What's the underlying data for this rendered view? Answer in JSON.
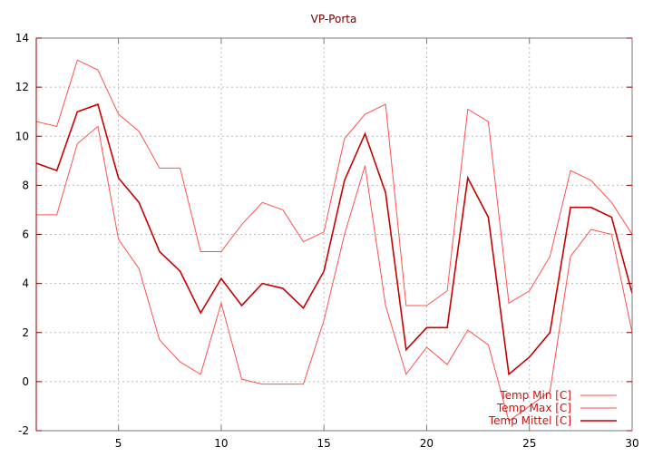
{
  "chart_data": {
    "type": "line",
    "title": "VP-Porta",
    "xlabel": "",
    "ylabel": "",
    "xlim": [
      1,
      30
    ],
    "ylim": [
      -2,
      14
    ],
    "xticks": [
      5,
      10,
      15,
      20,
      25,
      30
    ],
    "yticks": [
      -2,
      0,
      2,
      4,
      6,
      8,
      10,
      12,
      14
    ],
    "grid": true,
    "legend_position": "bottom-right",
    "x": [
      1,
      2,
      3,
      4,
      5,
      6,
      7,
      8,
      9,
      10,
      11,
      12,
      13,
      14,
      15,
      16,
      17,
      18,
      19,
      20,
      21,
      22,
      23,
      24,
      25,
      26,
      27,
      28,
      29,
      30
    ],
    "series": [
      {
        "name": "Temp Min [C]",
        "color": "#ff5050",
        "width": 1,
        "values": [
          6.8,
          6.8,
          9.7,
          10.4,
          5.8,
          4.6,
          1.7,
          0.8,
          0.3,
          3.2,
          0.1,
          -0.1,
          -0.1,
          -0.1,
          2.5,
          6.0,
          8.8,
          3.1,
          0.3,
          1.4,
          0.7,
          2.1,
          1.5,
          -1.6,
          -1.0,
          -0.4,
          5.1,
          6.2,
          6.0,
          2.0
        ]
      },
      {
        "name": "Temp Max [C]",
        "color": "#ff5050",
        "width": 1,
        "values": [
          10.6,
          10.4,
          13.1,
          12.7,
          10.9,
          10.2,
          8.7,
          8.7,
          5.3,
          5.3,
          6.4,
          7.3,
          7.0,
          5.7,
          6.1,
          9.9,
          10.9,
          11.3,
          3.1,
          3.1,
          3.7,
          11.1,
          10.6,
          3.2,
          3.7,
          5.1,
          8.6,
          8.2,
          7.3,
          6.0
        ]
      },
      {
        "name": "Temp Mittel [C]",
        "color": "#c80000",
        "width": 1.6,
        "values": [
          8.9,
          8.6,
          11.0,
          11.3,
          8.3,
          7.3,
          5.3,
          4.5,
          2.8,
          4.2,
          3.1,
          4.0,
          3.8,
          3.0,
          4.5,
          8.2,
          10.1,
          7.7,
          1.3,
          2.2,
          2.2,
          8.3,
          6.7,
          0.3,
          1.0,
          2.0,
          7.1,
          7.1,
          6.7,
          3.6
        ]
      }
    ]
  }
}
